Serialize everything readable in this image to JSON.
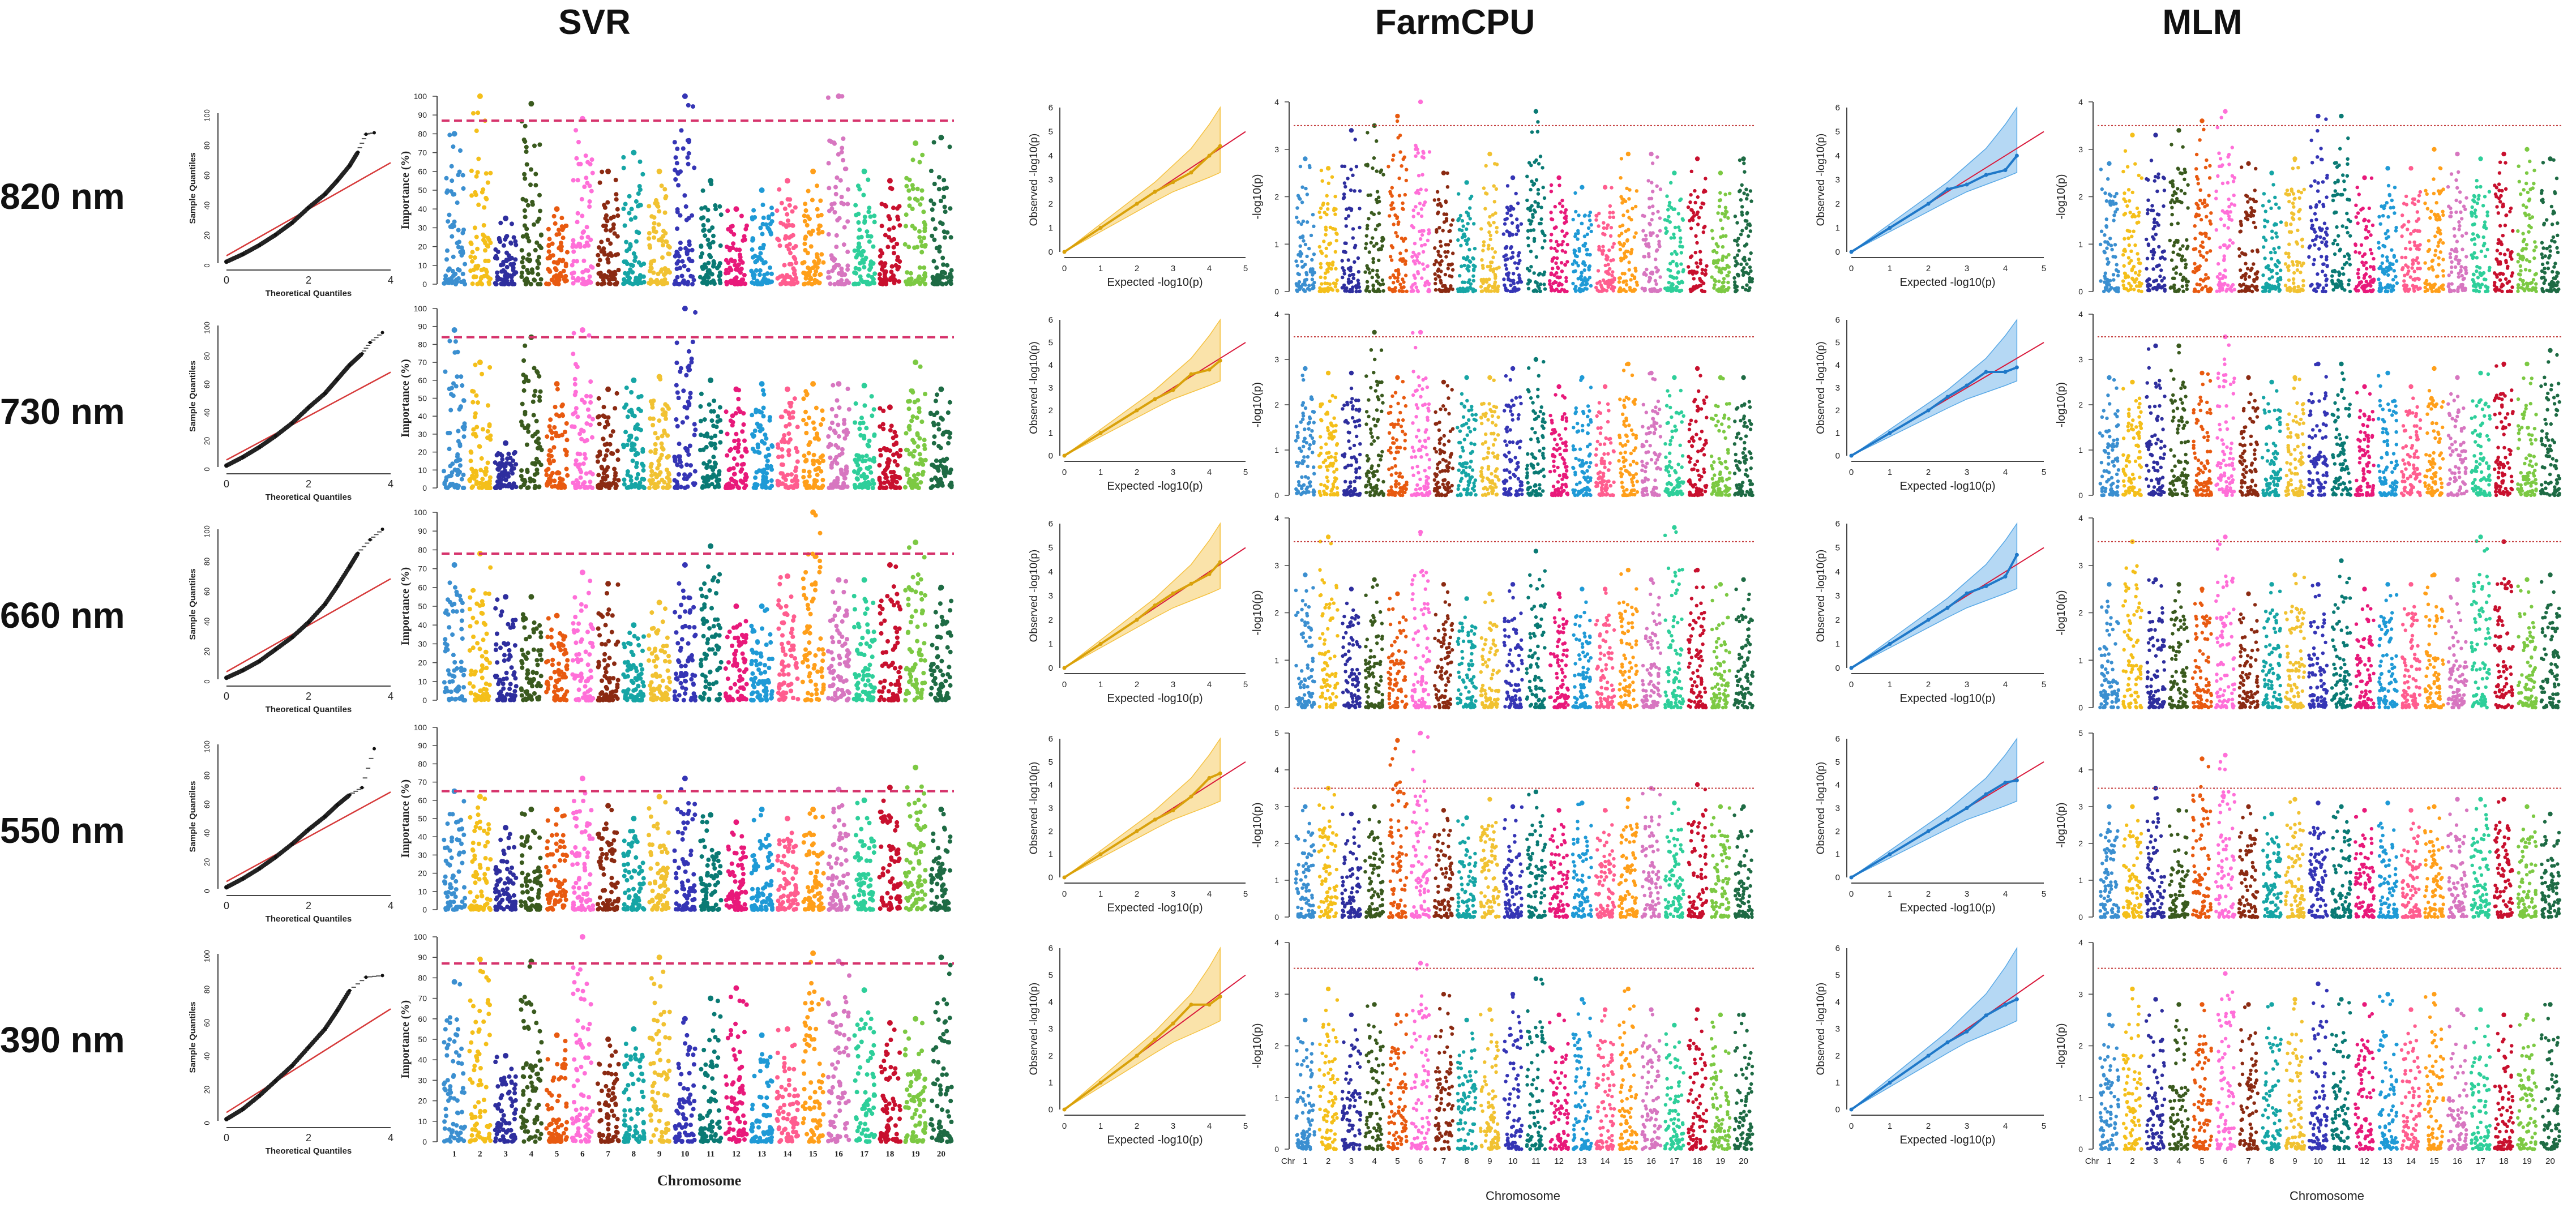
{
  "figure": {
    "methods": [
      "SVR",
      "FarmCPU",
      "MLM"
    ],
    "wavelengths": [
      "820 nm",
      "730 nm",
      "660 nm",
      "550 nm",
      "390 nm"
    ]
  },
  "colors": {
    "chromosomes": [
      "#3b8fd0",
      "#f4bf1a",
      "#2e2e9e",
      "#3a5a1e",
      "#e85a10",
      "#ff6fd8",
      "#8b2a12",
      "#16a5a5",
      "#f1c232",
      "#3535b5",
      "#0a7a74",
      "#e8197a",
      "#1f9ad6",
      "#ff5d8f",
      "#ff9f1a",
      "#d776c0",
      "#2ecf9a",
      "#c8102e",
      "#7cc943",
      "#1e6b44"
    ],
    "qq_svr_ref": "#d63a3a",
    "threshold": "#d6336c",
    "farmcpu_band": "#f5c242",
    "mlm_band": "#5aa9e6",
    "qq_line": "#d91a3c"
  },
  "chart_data": [
    {
      "type": "scatter",
      "id": "svr-qq",
      "xlabel": "Theoretical Quantiles",
      "ylabel": "Sample Quantiles",
      "xlim": [
        0,
        4
      ],
      "ylim": [
        0,
        100
      ],
      "xticks": [
        0,
        2,
        4
      ],
      "yticks": [
        0,
        20,
        40,
        60,
        80,
        100
      ],
      "reference_line": {
        "x": [
          0,
          4
        ],
        "y": [
          5,
          67
        ]
      },
      "series": [
        {
          "name": "820 nm",
          "x": [
            0.0,
            0.4,
            0.8,
            1.2,
            1.6,
            2.0,
            2.4,
            2.7,
            3.0,
            3.2,
            3.4,
            3.6
          ],
          "y": [
            1,
            6,
            12,
            19,
            27,
            37,
            46,
            55,
            65,
            74,
            86,
            87
          ]
        },
        {
          "name": "730 nm",
          "x": [
            0.0,
            0.4,
            0.8,
            1.2,
            1.6,
            2.0,
            2.4,
            2.7,
            3.0,
            3.3,
            3.5,
            3.8
          ],
          "y": [
            1,
            7,
            14,
            22,
            31,
            42,
            52,
            62,
            72,
            80,
            88,
            95
          ]
        },
        {
          "name": "660 nm",
          "x": [
            0.0,
            0.4,
            0.8,
            1.2,
            1.6,
            2.0,
            2.4,
            2.7,
            3.0,
            3.2,
            3.5,
            3.8
          ],
          "y": [
            1,
            6,
            12,
            20,
            28,
            38,
            50,
            62,
            75,
            84,
            93,
            100
          ]
        },
        {
          "name": "550 nm",
          "x": [
            0.0,
            0.4,
            0.8,
            1.2,
            1.6,
            2.0,
            2.4,
            2.7,
            3.0,
            3.3,
            3.6
          ],
          "y": [
            1,
            7,
            14,
            22,
            31,
            41,
            50,
            58,
            65,
            70,
            97
          ]
        },
        {
          "name": "390 nm",
          "x": [
            0.0,
            0.4,
            0.8,
            1.2,
            1.6,
            2.0,
            2.4,
            2.7,
            3.0,
            3.4,
            3.8
          ],
          "y": [
            1,
            7,
            15,
            24,
            33,
            44,
            55,
            66,
            78,
            86,
            87
          ]
        }
      ]
    },
    {
      "type": "scatter",
      "id": "svr-manhattan",
      "xlabel": "Chromosome",
      "ylabel": "Importance (%)",
      "ylim": [
        0,
        100
      ],
      "yticks": [
        0,
        10,
        20,
        30,
        40,
        50,
        60,
        70,
        80,
        90,
        100
      ],
      "categories": [
        "1",
        "2",
        "3",
        "4",
        "5",
        "6",
        "7",
        "8",
        "9",
        "10",
        "11",
        "12",
        "13",
        "14",
        "15",
        "16",
        "17",
        "18",
        "19",
        "20"
      ],
      "series": [
        {
          "name": "820 nm",
          "threshold": 87,
          "peaks": [
            80,
            100,
            35,
            96,
            40,
            88,
            60,
            70,
            60,
            100,
            55,
            40,
            50,
            55,
            60,
            100,
            60,
            55,
            75,
            78
          ]
        },
        {
          "name": "730 nm",
          "threshold": 84,
          "peaks": [
            88,
            70,
            25,
            84,
            58,
            88,
            55,
            60,
            62,
            100,
            60,
            55,
            58,
            55,
            58,
            58,
            57,
            45,
            70,
            55
          ]
        },
        {
          "name": "660 nm",
          "threshold": 78,
          "peaks": [
            72,
            78,
            55,
            55,
            45,
            68,
            62,
            40,
            52,
            72,
            82,
            50,
            50,
            66,
            100,
            64,
            64,
            72,
            84,
            60
          ]
        },
        {
          "name": "550 nm",
          "threshold": 65,
          "peaks": [
            65,
            62,
            45,
            55,
            55,
            72,
            57,
            50,
            62,
            72,
            52,
            48,
            55,
            50,
            55,
            66,
            60,
            67,
            78,
            55
          ]
        },
        {
          "name": "390 nm",
          "threshold": 87,
          "peaks": [
            78,
            89,
            42,
            88,
            52,
            100,
            50,
            55,
            90,
            60,
            70,
            75,
            52,
            55,
            92,
            88,
            74,
            58,
            60,
            90
          ]
        }
      ]
    },
    {
      "type": "line",
      "id": "farmcpu-qq",
      "xlabel": "Expected -log10(p)",
      "ylabel": "Observed -log10(p)",
      "xlim": [
        0,
        5
      ],
      "ylim": [
        0,
        6
      ],
      "xticks": [
        0,
        1,
        2,
        3,
        4,
        5
      ],
      "yticks": [
        0,
        1,
        2,
        3,
        4,
        5,
        6
      ],
      "band": {
        "x": [
          2.5,
          3.0,
          3.5,
          4.0,
          4.3
        ],
        "lower": [
          2.1,
          2.5,
          2.8,
          3.1,
          3.3
        ],
        "upper": [
          2.9,
          3.6,
          4.3,
          5.3,
          6.0
        ]
      },
      "series": [
        {
          "name": "820 nm",
          "x": [
            0,
            1,
            2,
            2.5,
            3,
            3.5,
            4,
            4.3
          ],
          "y": [
            0,
            1,
            2,
            2.5,
            2.9,
            3.3,
            4.0,
            4.4
          ]
        },
        {
          "name": "730 nm",
          "x": [
            0,
            1,
            2,
            2.5,
            3,
            3.5,
            4,
            4.3
          ],
          "y": [
            0,
            1,
            2,
            2.5,
            2.9,
            3.6,
            3.8,
            4.2
          ]
        },
        {
          "name": "660 nm",
          "x": [
            0,
            1,
            2,
            2.5,
            3,
            3.5,
            4,
            4.3
          ],
          "y": [
            0,
            1,
            2,
            2.6,
            3.1,
            3.5,
            3.9,
            4.4
          ]
        },
        {
          "name": "550 nm",
          "x": [
            0,
            1,
            2,
            2.5,
            3,
            3.5,
            4,
            4.3
          ],
          "y": [
            0,
            1,
            2,
            2.5,
            2.9,
            3.5,
            4.3,
            4.5
          ]
        },
        {
          "name": "390 nm",
          "x": [
            0,
            1,
            2,
            2.5,
            3,
            3.5,
            4,
            4.3
          ],
          "y": [
            0,
            1,
            2,
            2.6,
            3.2,
            3.9,
            3.9,
            4.2
          ]
        }
      ]
    },
    {
      "type": "scatter",
      "id": "farmcpu-manhattan",
      "xlabel": "Chromosome",
      "ylabel": "-log10(p)",
      "ylim": [
        0,
        4
      ],
      "yticks": [
        0,
        1,
        2,
        3,
        4
      ],
      "first_tick_label": "Chr",
      "categories": [
        "1",
        "2",
        "3",
        "4",
        "5",
        "6",
        "7",
        "8",
        "9",
        "10",
        "11",
        "12",
        "13",
        "14",
        "15",
        "16",
        "17",
        "18",
        "19",
        "20"
      ],
      "series": [
        {
          "name": "820 nm",
          "ylim": [
            0,
            4
          ],
          "yticks": [
            0,
            1,
            2,
            3,
            4
          ],
          "threshold": 3.5,
          "peaks": [
            2.8,
            2.6,
            3.4,
            3.5,
            3.7,
            4.0,
            2.5,
            2.3,
            2.9,
            2.4,
            3.8,
            2.4,
            2.2,
            2.2,
            2.9,
            2.9,
            2.5,
            2.8,
            2.5,
            2.8
          ]
        },
        {
          "name": "730 nm",
          "ylim": [
            0,
            4
          ],
          "yticks": [
            0,
            1,
            2,
            3,
            4
          ],
          "threshold": 3.5,
          "peaks": [
            2.8,
            2.7,
            2.7,
            3.6,
            2.6,
            3.6,
            2.5,
            2.6,
            2.6,
            2.8,
            3.0,
            2.4,
            2.6,
            2.4,
            2.9,
            2.7,
            2.6,
            2.8,
            2.6,
            2.6
          ]
        },
        {
          "name": "660 nm",
          "ylim": [
            0,
            4
          ],
          "yticks": [
            0,
            1,
            2,
            3,
            4
          ],
          "threshold": 3.5,
          "peaks": [
            2.8,
            3.6,
            2.5,
            2.7,
            2.4,
            3.7,
            2.6,
            2.3,
            2.4,
            2.6,
            3.3,
            2.4,
            2.5,
            2.5,
            2.9,
            2.7,
            3.8,
            2.9,
            2.6,
            2.7
          ]
        },
        {
          "name": "550 nm",
          "ylim": [
            0,
            5
          ],
          "yticks": [
            0,
            1,
            2,
            3,
            4,
            5
          ],
          "threshold": 3.5,
          "peaks": [
            3.0,
            3.5,
            2.8,
            3.0,
            4.8,
            5.0,
            2.9,
            2.7,
            3.2,
            3.0,
            3.4,
            2.9,
            3.1,
            2.9,
            3.2,
            3.5,
            3.1,
            3.6,
            3.0,
            3.0
          ]
        },
        {
          "name": "390 nm",
          "ylim": [
            0,
            4
          ],
          "yticks": [
            0,
            1,
            2,
            3,
            4
          ],
          "threshold": 3.5,
          "peaks": [
            2.5,
            3.1,
            2.6,
            2.8,
            2.6,
            3.6,
            3.0,
            2.5,
            2.7,
            3.0,
            3.3,
            2.6,
            2.9,
            2.7,
            3.1,
            2.7,
            2.4,
            2.7,
            2.6,
            2.6
          ]
        }
      ]
    },
    {
      "type": "line",
      "id": "mlm-qq",
      "xlabel": "Expected -log10(p)",
      "ylabel": "Observed -log10(p)",
      "xlim": [
        0,
        5
      ],
      "ylim": [
        0,
        6
      ],
      "xticks": [
        0,
        1,
        2,
        3,
        4,
        5
      ],
      "yticks": [
        0,
        1,
        2,
        3,
        4,
        5,
        6
      ],
      "band": {
        "x": [
          2.5,
          3.0,
          3.5,
          4.0,
          4.3
        ],
        "lower": [
          2.1,
          2.5,
          2.8,
          3.1,
          3.3
        ],
        "upper": [
          2.9,
          3.6,
          4.3,
          5.3,
          6.0
        ]
      },
      "series": [
        {
          "name": "820 nm",
          "x": [
            0,
            1,
            2,
            2.5,
            3,
            3.5,
            4,
            4.3
          ],
          "y": [
            0,
            1,
            2,
            2.6,
            2.8,
            3.2,
            3.4,
            4.0
          ]
        },
        {
          "name": "730 nm",
          "x": [
            0,
            1,
            2,
            2.5,
            3,
            3.5,
            4,
            4.3
          ],
          "y": [
            0,
            1,
            2,
            2.6,
            3.1,
            3.7,
            3.7,
            3.9
          ]
        },
        {
          "name": "660 nm",
          "x": [
            0,
            1,
            2,
            2.5,
            3,
            3.5,
            4,
            4.3
          ],
          "y": [
            0,
            1,
            2,
            2.5,
            3.1,
            3.4,
            3.8,
            4.7
          ]
        },
        {
          "name": "550 nm",
          "x": [
            0,
            1,
            2,
            2.5,
            3,
            3.5,
            4,
            4.3
          ],
          "y": [
            0,
            1,
            2,
            2.5,
            3.0,
            3.6,
            4.1,
            4.2
          ]
        },
        {
          "name": "390 nm",
          "x": [
            0,
            1,
            2,
            2.5,
            3,
            3.5,
            4,
            4.3
          ],
          "y": [
            0,
            1,
            2,
            2.5,
            2.9,
            3.5,
            3.9,
            4.1
          ]
        }
      ]
    },
    {
      "type": "scatter",
      "id": "mlm-manhattan",
      "xlabel": "Chromosome",
      "ylabel": "-log10(p)",
      "ylim": [
        0,
        4
      ],
      "yticks": [
        0,
        1,
        2,
        3,
        4
      ],
      "first_tick_label": "Chr",
      "categories": [
        "1",
        "2",
        "3",
        "4",
        "5",
        "6",
        "7",
        "8",
        "9",
        "10",
        "11",
        "12",
        "13",
        "14",
        "15",
        "16",
        "17",
        "18",
        "19",
        "20"
      ],
      "series": [
        {
          "name": "820 nm",
          "ylim": [
            0,
            4
          ],
          "yticks": [
            0,
            1,
            2,
            3,
            4
          ],
          "threshold": 3.5,
          "peaks": [
            2.7,
            3.3,
            3.3,
            3.4,
            3.6,
            3.8,
            2.7,
            2.5,
            2.8,
            3.7,
            3.7,
            2.4,
            2.6,
            2.6,
            3.0,
            2.9,
            2.8,
            2.9,
            3.0,
            2.8
          ]
        },
        {
          "name": "730 nm",
          "ylim": [
            0,
            4
          ],
          "yticks": [
            0,
            1,
            2,
            3,
            4
          ],
          "threshold": 3.5,
          "peaks": [
            2.6,
            2.5,
            3.3,
            3.3,
            2.7,
            3.5,
            2.6,
            2.5,
            2.6,
            2.9,
            2.9,
            2.4,
            2.7,
            2.4,
            2.8,
            2.6,
            2.7,
            2.9,
            2.9,
            3.2
          ]
        },
        {
          "name": "660 nm",
          "ylim": [
            0,
            4
          ],
          "yticks": [
            0,
            1,
            2,
            3,
            4
          ],
          "threshold": 3.5,
          "peaks": [
            2.6,
            3.5,
            2.7,
            2.6,
            2.5,
            3.6,
            2.4,
            2.6,
            2.8,
            2.6,
            3.1,
            2.5,
            2.6,
            2.6,
            2.8,
            2.7,
            3.6,
            3.5,
            2.7,
            2.8
          ]
        },
        {
          "name": "550 nm",
          "ylim": [
            0,
            5
          ],
          "yticks": [
            0,
            1,
            2,
            3,
            4,
            5
          ],
          "threshold": 3.5,
          "peaks": [
            3.0,
            3.0,
            3.5,
            2.9,
            4.3,
            4.4,
            3.0,
            2.8,
            3.2,
            3.1,
            3.0,
            2.9,
            3.1,
            2.9,
            3.0,
            3.2,
            3.2,
            3.2,
            3.0,
            2.8
          ]
        },
        {
          "name": "390 nm",
          "ylim": [
            0,
            4
          ],
          "yticks": [
            0,
            1,
            2,
            3,
            4
          ],
          "threshold": 3.5,
          "peaks": [
            2.6,
            3.1,
            2.9,
            2.8,
            2.8,
            3.4,
            2.8,
            2.8,
            2.9,
            3.2,
            2.9,
            2.8,
            3.0,
            2.7,
            3.0,
            2.7,
            2.7,
            2.6,
            2.6,
            2.8
          ]
        }
      ]
    }
  ]
}
